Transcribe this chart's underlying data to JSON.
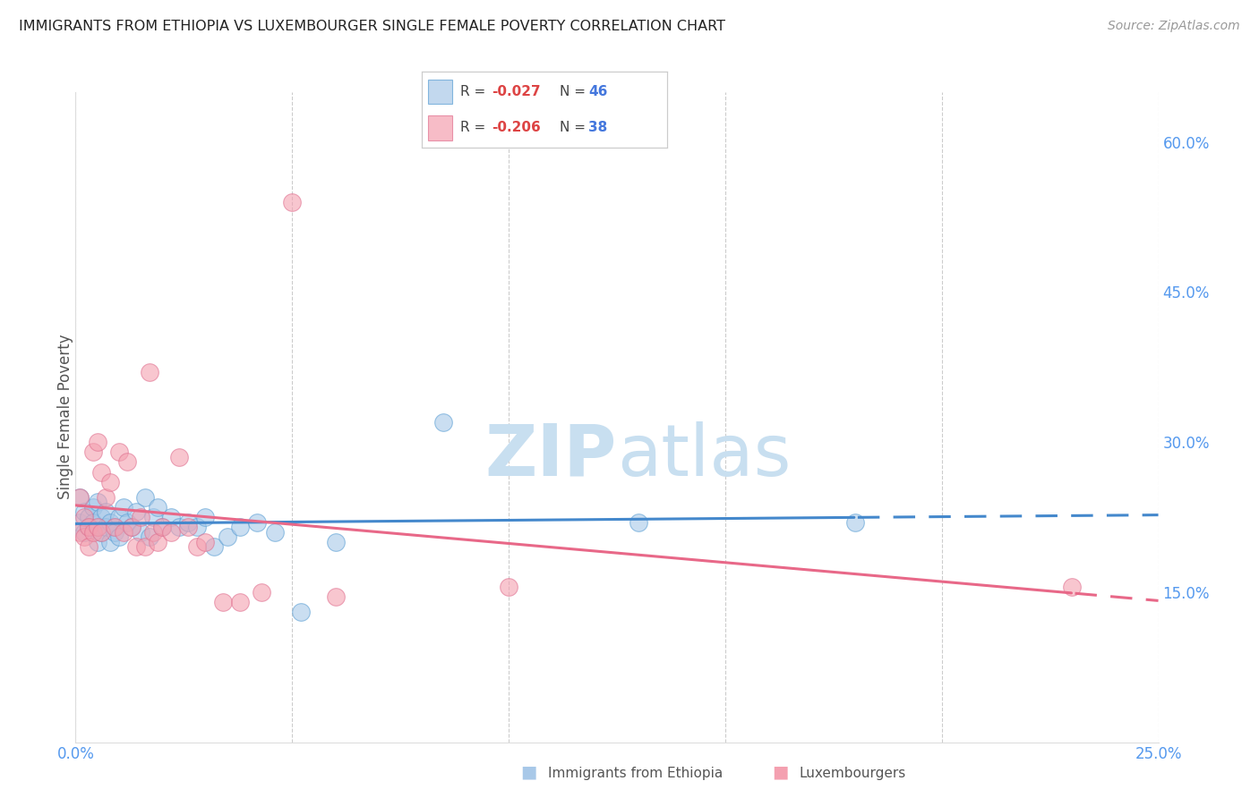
{
  "title": "IMMIGRANTS FROM ETHIOPIA VS LUXEMBOURGER SINGLE FEMALE POVERTY CORRELATION CHART",
  "source": "Source: ZipAtlas.com",
  "ylabel": "Single Female Poverty",
  "xlim": [
    0.0,
    0.25
  ],
  "ylim": [
    0.0,
    0.65
  ],
  "xtick_positions": [
    0.0,
    0.05,
    0.1,
    0.15,
    0.2,
    0.25
  ],
  "xtick_labels": [
    "0.0%",
    "",
    "",
    "",
    "",
    "25.0%"
  ],
  "ytick_positions": [
    0.0,
    0.15,
    0.3,
    0.45,
    0.6
  ],
  "ytick_labels": [
    "",
    "15.0%",
    "30.0%",
    "45.0%",
    "60.0%"
  ],
  "blue_fill": "#a8c8e8",
  "blue_edge": "#5a9fd4",
  "pink_fill": "#f4a0b0",
  "pink_edge": "#e07090",
  "blue_line_color": "#4488cc",
  "pink_line_color": "#e86888",
  "tick_label_color": "#5599ee",
  "watermark_color": "#c8dff0",
  "ethiopia_x": [
    0.001,
    0.001,
    0.002,
    0.002,
    0.003,
    0.003,
    0.004,
    0.004,
    0.005,
    0.005,
    0.005,
    0.006,
    0.006,
    0.007,
    0.007,
    0.008,
    0.008,
    0.009,
    0.009,
    0.01,
    0.01,
    0.011,
    0.012,
    0.013,
    0.014,
    0.015,
    0.016,
    0.017,
    0.018,
    0.019,
    0.02,
    0.022,
    0.024,
    0.026,
    0.028,
    0.03,
    0.032,
    0.035,
    0.038,
    0.042,
    0.046,
    0.052,
    0.06,
    0.085,
    0.13,
    0.18
  ],
  "ethiopia_y": [
    0.245,
    0.22,
    0.23,
    0.21,
    0.225,
    0.215,
    0.235,
    0.22,
    0.24,
    0.215,
    0.2,
    0.225,
    0.21,
    0.23,
    0.215,
    0.22,
    0.2,
    0.215,
    0.21,
    0.225,
    0.205,
    0.235,
    0.22,
    0.215,
    0.23,
    0.21,
    0.245,
    0.205,
    0.225,
    0.235,
    0.215,
    0.225,
    0.215,
    0.22,
    0.215,
    0.225,
    0.195,
    0.205,
    0.215,
    0.22,
    0.21,
    0.13,
    0.2,
    0.32,
    0.22,
    0.22
  ],
  "luxembourger_x": [
    0.001,
    0.001,
    0.002,
    0.002,
    0.003,
    0.003,
    0.004,
    0.004,
    0.005,
    0.005,
    0.006,
    0.006,
    0.007,
    0.008,
    0.009,
    0.01,
    0.011,
    0.012,
    0.013,
    0.014,
    0.015,
    0.016,
    0.017,
    0.018,
    0.019,
    0.02,
    0.022,
    0.024,
    0.026,
    0.028,
    0.03,
    0.034,
    0.038,
    0.043,
    0.05,
    0.06,
    0.1,
    0.23
  ],
  "luxembourger_y": [
    0.245,
    0.21,
    0.225,
    0.205,
    0.215,
    0.195,
    0.29,
    0.21,
    0.3,
    0.215,
    0.27,
    0.21,
    0.245,
    0.26,
    0.215,
    0.29,
    0.21,
    0.28,
    0.215,
    0.195,
    0.225,
    0.195,
    0.37,
    0.21,
    0.2,
    0.215,
    0.21,
    0.285,
    0.215,
    0.195,
    0.2,
    0.14,
    0.14,
    0.15,
    0.54,
    0.145,
    0.155,
    0.155
  ]
}
